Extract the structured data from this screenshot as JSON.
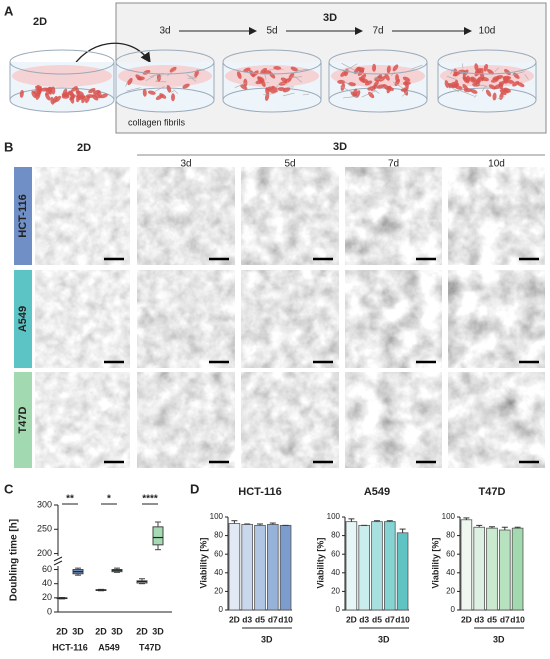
{
  "panel_a": {
    "label": "A",
    "left_title": "2D",
    "right_title": "3D",
    "timepoints": [
      "3d",
      "5d",
      "7d",
      "10d"
    ],
    "annotation": "collagen fibrils"
  },
  "panel_b": {
    "label": "B",
    "left_title": "2D",
    "right_title": "3D",
    "timepoints": [
      "3d",
      "5d",
      "7d",
      "10d"
    ],
    "cell_lines": [
      {
        "name": "HCT-116",
        "color": "#6f8fc6"
      },
      {
        "name": "A549",
        "color": "#5cc4c4"
      },
      {
        "name": "T47D",
        "color": "#a3d9b1"
      }
    ]
  },
  "chart_data": [
    {
      "type": "box",
      "label": "C",
      "ylabel": "Doubling time [h]",
      "categories": [
        "2D",
        "3D",
        "2D",
        "3D",
        "2D",
        "3D"
      ],
      "groups": [
        "HCT-116",
        "A549",
        "T47D"
      ],
      "boxes": [
        {
          "min": 18.5,
          "q1": 19,
          "median": 19.5,
          "q3": 20,
          "max": 20.5,
          "color": "#ffffff"
        },
        {
          "min": 52,
          "q1": 54,
          "median": 57,
          "q3": 60,
          "max": 62,
          "color": "#6b8fc4"
        },
        {
          "min": 30,
          "q1": 30.5,
          "median": 31,
          "q3": 31.5,
          "max": 32,
          "color": "#ffffff"
        },
        {
          "min": 56,
          "q1": 57,
          "median": 59,
          "q3": 60,
          "max": 62,
          "color": "#5fc1c1"
        },
        {
          "min": 40,
          "q1": 41,
          "median": 43,
          "q3": 44,
          "max": 47,
          "color": "#ffffff"
        },
        {
          "min": 208,
          "q1": 218,
          "median": 233,
          "q3": 255,
          "max": 265,
          "color": "#a6dab2"
        }
      ],
      "significance": [
        "**",
        "*",
        "****"
      ],
      "ylim": [
        0,
        300
      ],
      "ybreak": [
        65,
        195
      ],
      "yticks": [
        0,
        20,
        40,
        60,
        200,
        250,
        300
      ]
    },
    {
      "type": "bar",
      "label": "D",
      "title": "HCT-116",
      "ylabel": "Viability [%]",
      "categories": [
        "2D",
        "d3",
        "d5",
        "d7",
        "d10"
      ],
      "group_label": "3D",
      "values": [
        93,
        92,
        91,
        92,
        91
      ],
      "errors": [
        3,
        0.5,
        1.5,
        1.5,
        0
      ],
      "colors": [
        "#e1e9f4",
        "#c9d8ec",
        "#b1c6e3",
        "#97b2d8",
        "#7c9ccb"
      ],
      "ylim": [
        0,
        100
      ],
      "yticks": [
        0,
        20,
        40,
        60,
        80,
        100
      ]
    },
    {
      "type": "bar",
      "title": "A549",
      "ylabel": "Viability [%]",
      "categories": [
        "2D",
        "d3",
        "d5",
        "d7",
        "d10"
      ],
      "group_label": "3D",
      "values": [
        95,
        91,
        95,
        95,
        83
      ],
      "errors": [
        3,
        0,
        1,
        1,
        4
      ],
      "colors": [
        "#e6f6f6",
        "#c9ecec",
        "#a8e0e0",
        "#86d3d3",
        "#5fc3c3"
      ],
      "ylim": [
        0,
        100
      ],
      "yticks": [
        0,
        20,
        40,
        60,
        80,
        100
      ]
    },
    {
      "type": "bar",
      "title": "T47D",
      "ylabel": "Viability [%]",
      "categories": [
        "2D",
        "d3",
        "d5",
        "d7",
        "d10"
      ],
      "group_label": "3D",
      "values": [
        97,
        89,
        88,
        86,
        88
      ],
      "errors": [
        2,
        2,
        1.5,
        3,
        1
      ],
      "colors": [
        "#eef8f0",
        "#dcf1e1",
        "#c9eace",
        "#b7e2bf",
        "#a3d9ae"
      ],
      "ylim": [
        0,
        100
      ],
      "yticks": [
        0,
        20,
        40,
        60,
        80,
        100
      ]
    }
  ]
}
